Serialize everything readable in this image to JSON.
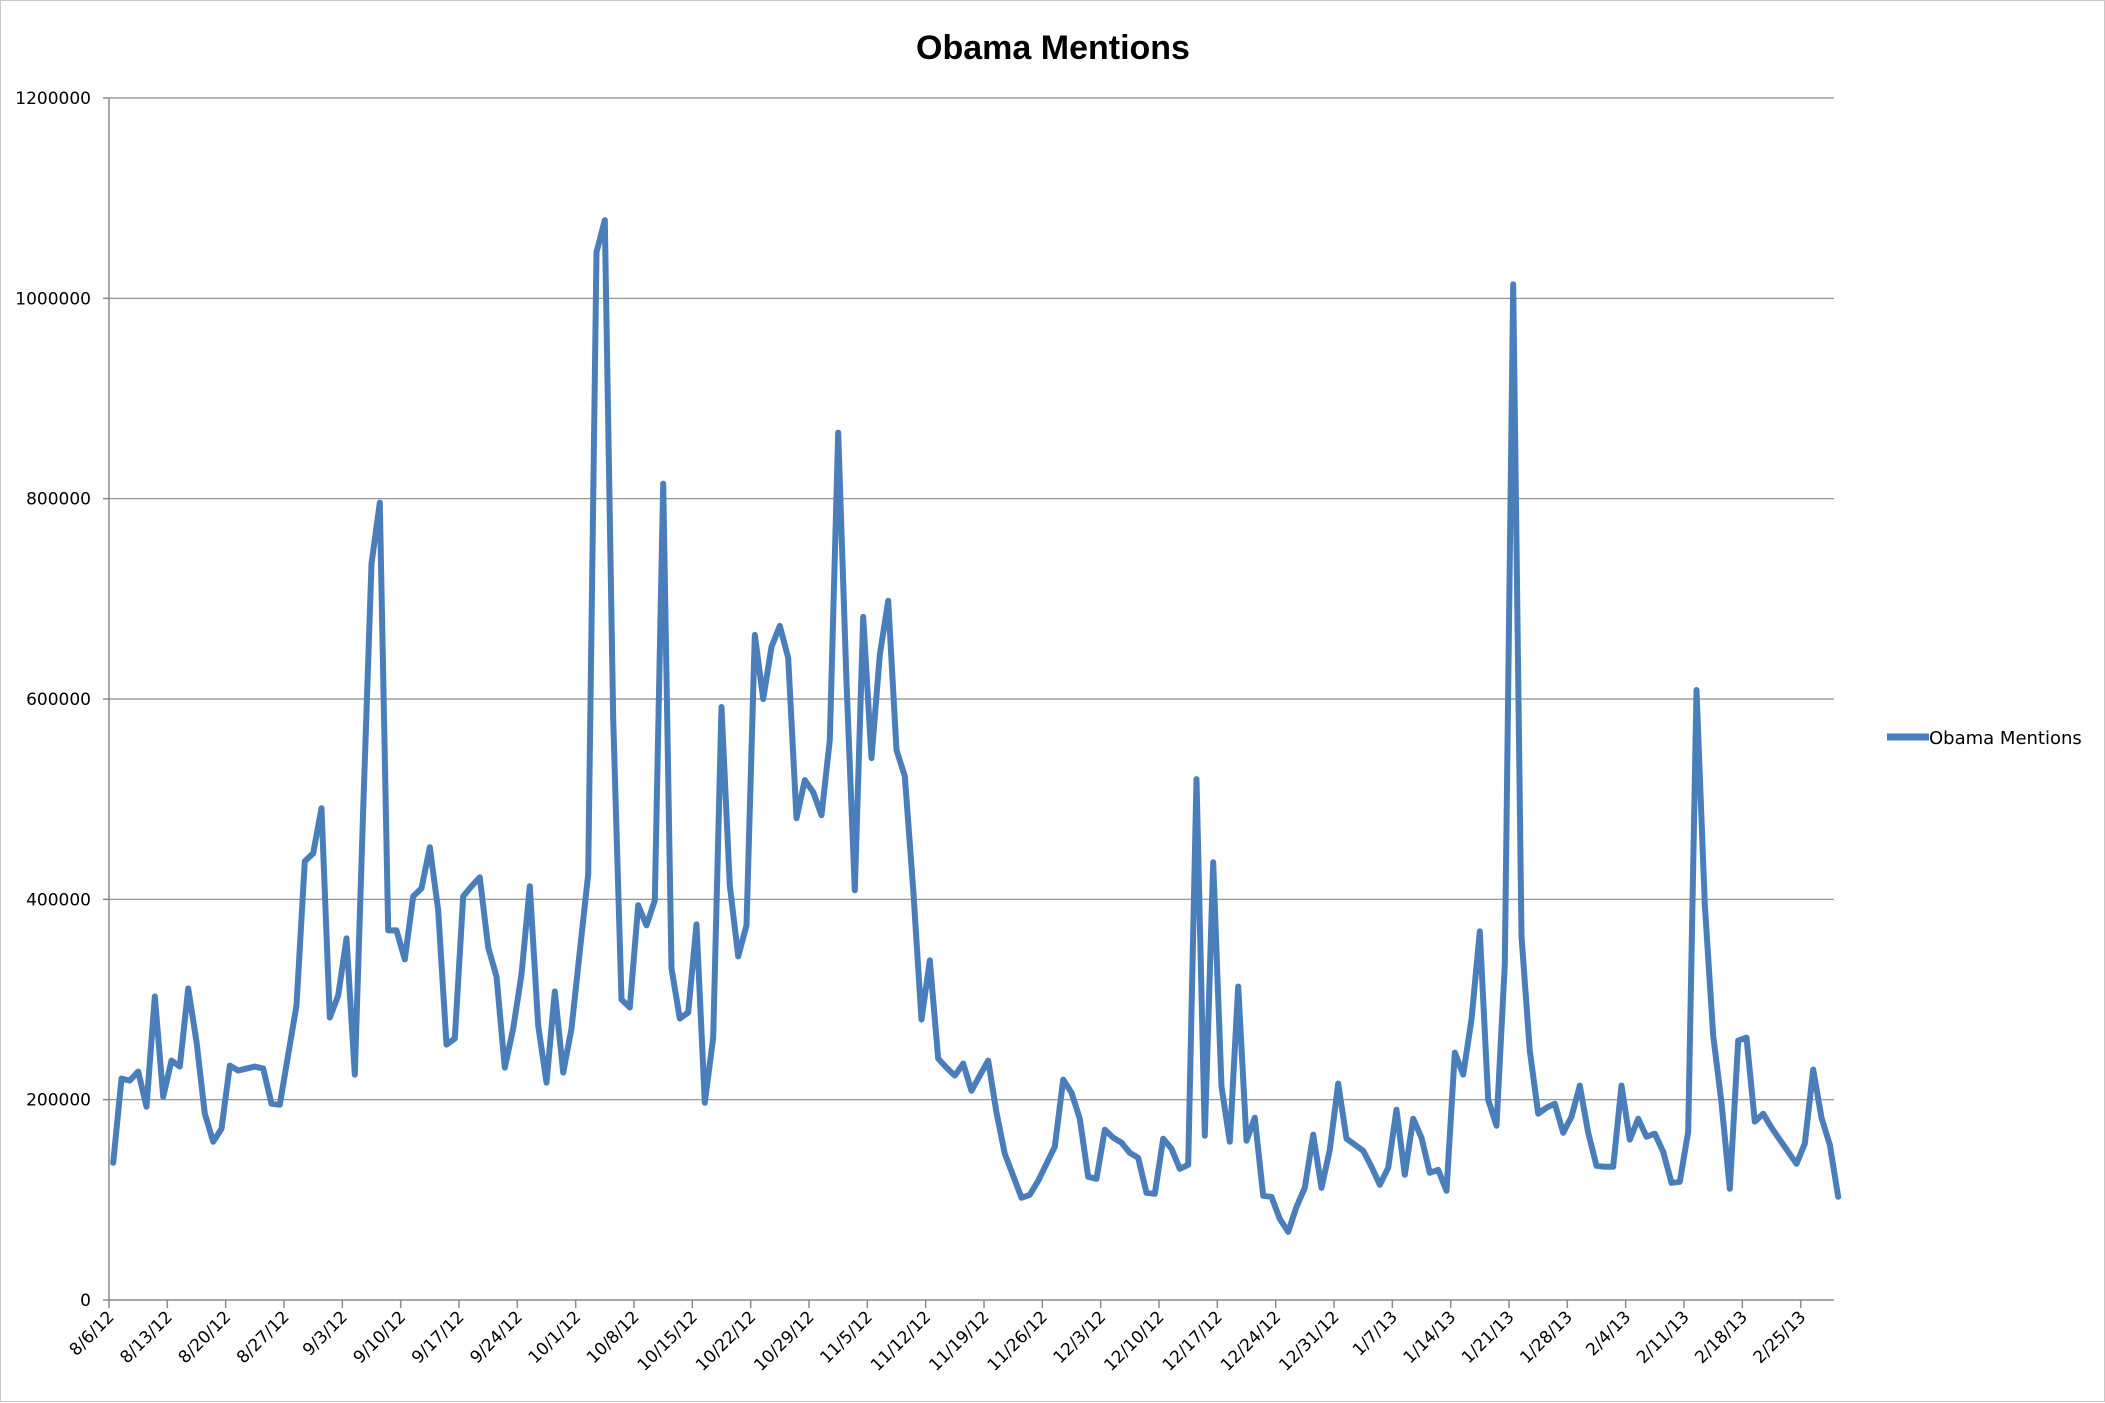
{
  "chart_data": {
    "type": "line",
    "title": "Obama Mentions",
    "xlabel": "",
    "ylabel": "",
    "ylim": [
      0,
      1200000
    ],
    "yticks": [
      0,
      200000,
      400000,
      600000,
      800000,
      1000000,
      1200000
    ],
    "ytick_labels": [
      "0",
      "200000",
      "400000",
      "600000",
      "800000",
      "1000000",
      "1200000"
    ],
    "x_start": "2012-08-06",
    "x_end": "2013-02-28",
    "xtick_labels": [
      "8/6/12",
      "8/13/12",
      "8/20/12",
      "8/27/12",
      "9/3/12",
      "9/10/12",
      "9/17/12",
      "9/24/12",
      "10/1/12",
      "10/8/12",
      "10/15/12",
      "10/22/12",
      "10/29/12",
      "11/5/12",
      "11/12/12",
      "11/19/12",
      "11/26/12",
      "12/3/12",
      "12/10/12",
      "12/17/12",
      "12/24/12",
      "12/31/12",
      "1/7/13",
      "1/14/13",
      "1/21/13",
      "1/28/13",
      "2/4/13",
      "2/11/13",
      "2/18/13",
      "2/25/13"
    ],
    "grid": true,
    "legend_position": "right",
    "color": "#4a7ebb",
    "series": [
      {
        "name": "Obama Mentions",
        "values": [
          137000,
          221000,
          219000,
          228000,
          193000,
          303000,
          203000,
          239000,
          233000,
          311000,
          258000,
          186000,
          158000,
          171000,
          234000,
          229000,
          231000,
          233000,
          231000,
          196000,
          195000,
          245000,
          294000,
          438000,
          446000,
          491000,
          282000,
          304000,
          361000,
          225000,
          490000,
          735000,
          796000,
          369000,
          369000,
          340000,
          403000,
          411000,
          452000,
          389000,
          255000,
          261000,
          403000,
          413000,
          422000,
          352000,
          323000,
          232000,
          271000,
          325000,
          413000,
          274000,
          217000,
          308000,
          227000,
          271000,
          348000,
          425000,
          1046000,
          1078000,
          580000,
          300000,
          292000,
          394000,
          374000,
          399000,
          815000,
          331000,
          281000,
          287000,
          375000,
          197000,
          262000,
          592000,
          414000,
          343000,
          374000,
          664000,
          600000,
          652000,
          673000,
          641000,
          481000,
          519000,
          507000,
          484000,
          559000,
          866000,
          617000,
          409000,
          682000,
          541000,
          644000,
          698000,
          549000,
          523000,
          410000,
          280000,
          339000,
          241000,
          232000,
          224000,
          236000,
          209000,
          224000,
          239000,
          187000,
          146000,
          124000,
          102000,
          105000,
          119000,
          136000,
          153000,
          220000,
          207000,
          181000,
          123000,
          121000,
          170000,
          162000,
          157000,
          147000,
          142000,
          107000,
          106000,
          161000,
          151000,
          131000,
          135000,
          520000,
          164000,
          437000,
          213000,
          158000,
          313000,
          159000,
          182000,
          104000,
          103000,
          81000,
          68000,
          93000,
          112000,
          165000,
          112000,
          150000,
          216000,
          161000,
          155000,
          149000,
          133000,
          115000,
          132000,
          190000,
          125000,
          181000,
          162000,
          127000,
          130000,
          109000,
          247000,
          225000,
          280000,
          368000,
          200000,
          174000,
          335000,
          1014000,
          363000,
          249000,
          186000,
          192000,
          196000,
          167000,
          183000,
          214000,
          167000,
          134000,
          133000,
          133000,
          214000,
          160000,
          181000,
          163000,
          166000,
          148000,
          117000,
          118000,
          168000,
          609000,
          395000,
          264000,
          197000,
          111000,
          259000,
          262000,
          178000,
          186000,
          172000,
          160000,
          148000,
          136000,
          156000,
          230000,
          182000,
          155000,
          103000
        ]
      }
    ]
  }
}
